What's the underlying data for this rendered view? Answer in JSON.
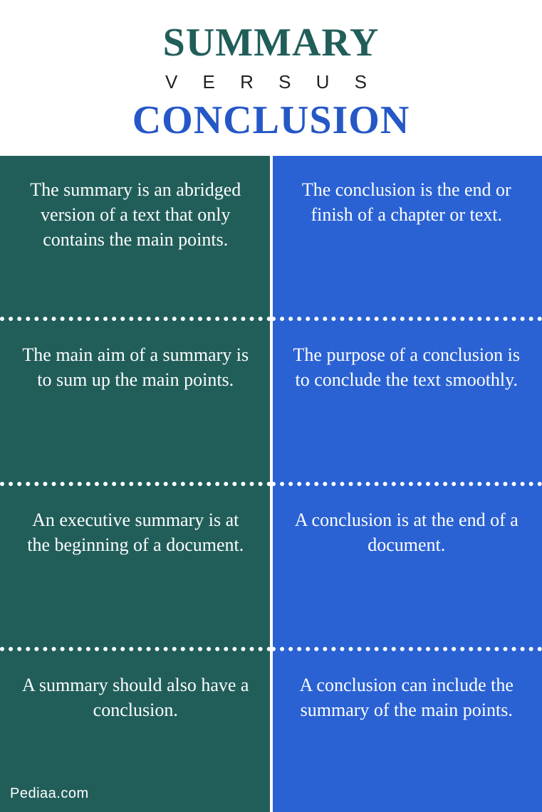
{
  "header": {
    "title1": "SUMMARY",
    "versus": "V E R S U S",
    "title2": "CONCLUSION",
    "title1_color": "#215e5a",
    "title2_color": "#2557c6"
  },
  "columns": {
    "left_bg": "#215e5a",
    "right_bg": "#2a62d4"
  },
  "rows": [
    {
      "left": "The summary is an abridged version of a text that only contains the main points.",
      "right": "The conclusion is the end or finish of a chapter or text."
    },
    {
      "left": "The main aim of a summary is to sum up the main points.",
      "right": "The purpose of a conclusion is to conclude the text smoothly."
    },
    {
      "left": "An executive summary is at the beginning of a document.",
      "right": "A conclusion is at the end of a document."
    },
    {
      "left": "A summary should also have a conclusion.",
      "right": "A conclusion can include the summary of the main points."
    }
  ],
  "source": "Pediaa.com",
  "style": {
    "text_color": "#ffffff",
    "divider_color": "#ffffff",
    "cell_fontsize": 26,
    "title_fontsize": 56,
    "versus_fontsize": 26
  }
}
